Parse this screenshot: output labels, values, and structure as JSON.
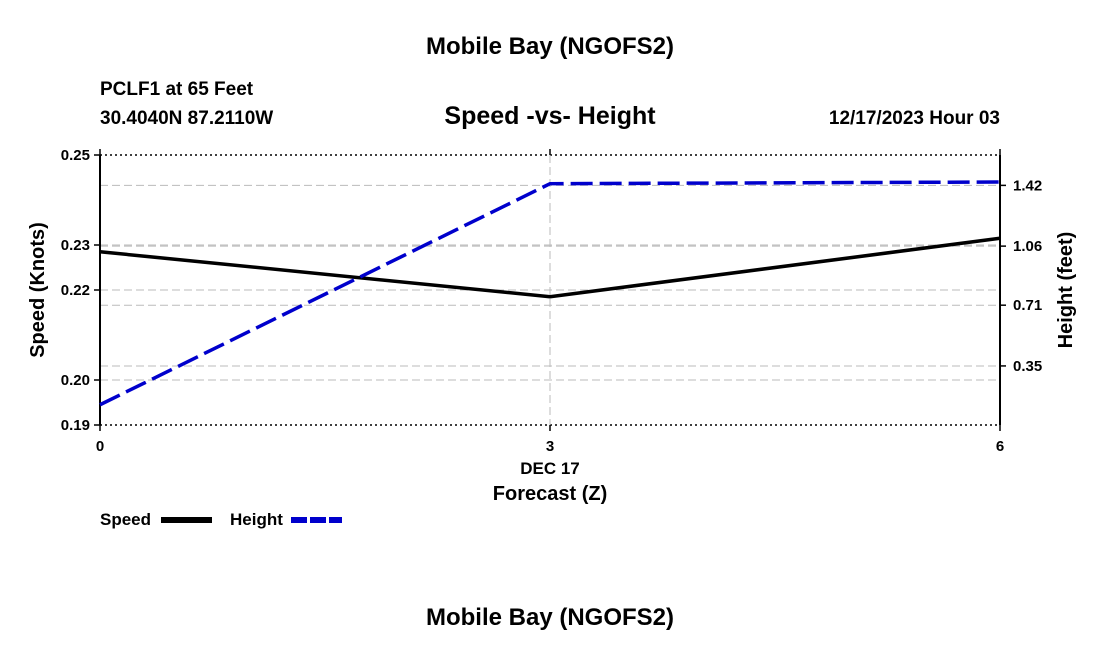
{
  "header": {
    "title": "Mobile Bay (NGOFS2)",
    "station": "PCLF1 at 65 Feet",
    "coords": "30.4040N  87.2110W",
    "subtitle": "Speed -vs- Height",
    "datetime": "12/17/2023 Hour 03"
  },
  "footer": {
    "title": "Mobile Bay (NGOFS2)"
  },
  "colors": {
    "speed": "#000000",
    "height": "#0000cc",
    "grid": "#bbbbbb",
    "axis": "#000000"
  },
  "chart_data": {
    "type": "line",
    "title": "Speed -vs- Height",
    "xlabel": "Forecast (Z)",
    "x_date_label": "DEC 17",
    "ylabel": "Speed (Knots)",
    "y2label": "Height (feet)",
    "x": [
      0,
      3,
      6
    ],
    "xlim": [
      0,
      6
    ],
    "x_ticks": [
      "0",
      "3",
      "6"
    ],
    "ylim": [
      0.19,
      0.25
    ],
    "y_ticks": [
      0.19,
      0.2,
      0.22,
      0.23,
      0.25
    ],
    "y_tick_labels": [
      "0.19",
      "0.20",
      "0.22",
      "0.23",
      "0.25"
    ],
    "y2lim": [
      0.0,
      1.6
    ],
    "y2_ticks": [
      0.35,
      0.71,
      1.06,
      1.42
    ],
    "y2_tick_labels": [
      "0.35",
      "0.71",
      "1.06",
      "1.42"
    ],
    "grid": true,
    "legend_position": "bottom-left",
    "series": [
      {
        "name": "Speed",
        "axis": "left",
        "style": "solid",
        "values": [
          0.2285,
          0.2185,
          0.2315
        ]
      },
      {
        "name": "Height",
        "axis": "right",
        "style": "dashed",
        "values": [
          0.12,
          1.43,
          1.44
        ]
      }
    ]
  }
}
